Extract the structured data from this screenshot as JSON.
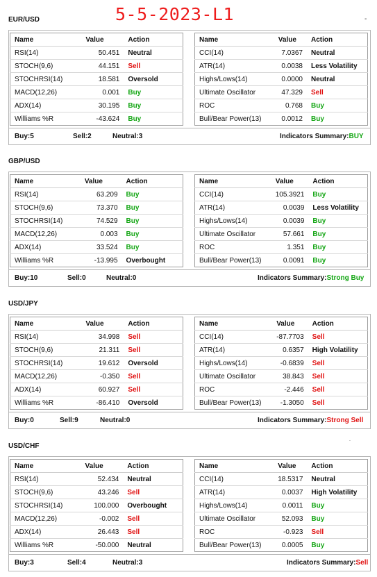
{
  "title": "5-5-2023-L1",
  "columns": {
    "name": "Name",
    "value": "Value",
    "action": "Action"
  },
  "colors": {
    "buy": "#12a512",
    "sell": "#e01010",
    "neutral": "#111111",
    "title": "#ee1c1c"
  },
  "summary_label": "Indicators Summary:",
  "pairs": [
    {
      "pair": "EUR/USD",
      "left": [
        {
          "name": "RSI(14)",
          "value": "50.451",
          "action": "Neutral"
        },
        {
          "name": "STOCH(9,6)",
          "value": "44.151",
          "action": "Sell"
        },
        {
          "name": "STOCHRSI(14)",
          "value": "18.581",
          "action": "Oversold"
        },
        {
          "name": "MACD(12,26)",
          "value": "0.001",
          "action": "Buy"
        },
        {
          "name": "ADX(14)",
          "value": "30.195",
          "action": "Buy"
        },
        {
          "name": "Williams %R",
          "value": "-43.624",
          "action": "Buy"
        }
      ],
      "right": [
        {
          "name": "CCI(14)",
          "value": "7.0367",
          "action": "Neutral"
        },
        {
          "name": "ATR(14)",
          "value": "0.0038",
          "action": "Less Volatility"
        },
        {
          "name": "Highs/Lows(14)",
          "value": "0.0000",
          "action": "Neutral"
        },
        {
          "name": "Ultimate Oscillator",
          "value": "47.329",
          "action": "Sell"
        },
        {
          "name": "ROC",
          "value": "0.768",
          "action": "Buy"
        },
        {
          "name": "Bull/Bear Power(13)",
          "value": "0.0012",
          "action": "Buy"
        }
      ],
      "buy": "Buy:5",
      "sell": "Sell:2",
      "neutral": "Neutral:3",
      "summary": "BUY"
    },
    {
      "pair": "GBP/USD",
      "left": [
        {
          "name": "RSI(14)",
          "value": "63.209",
          "action": "Buy"
        },
        {
          "name": "STOCH(9,6)",
          "value": "73.370",
          "action": "Buy"
        },
        {
          "name": "STOCHRSI(14)",
          "value": "74.529",
          "action": "Buy"
        },
        {
          "name": "MACD(12,26)",
          "value": "0.003",
          "action": "Buy"
        },
        {
          "name": "ADX(14)",
          "value": "33.524",
          "action": "Buy"
        },
        {
          "name": "Williams %R",
          "value": "-13.995",
          "action": "Overbought"
        }
      ],
      "right": [
        {
          "name": "CCI(14)",
          "value": "105.3921",
          "action": "Buy"
        },
        {
          "name": "ATR(14)",
          "value": "0.0039",
          "action": "Less Volatility"
        },
        {
          "name": "Highs/Lows(14)",
          "value": "0.0039",
          "action": "Buy"
        },
        {
          "name": "Ultimate Oscillator",
          "value": "57.661",
          "action": "Buy"
        },
        {
          "name": "ROC",
          "value": "1.351",
          "action": "Buy"
        },
        {
          "name": "Bull/Bear Power(13)",
          "value": "0.0091",
          "action": "Buy"
        }
      ],
      "buy": "Buy:10",
      "sell": "Sell:0",
      "neutral": "Neutral:0",
      "summary": "Strong Buy"
    },
    {
      "pair": "USD/JPY",
      "left": [
        {
          "name": "RSI(14)",
          "value": "34.998",
          "action": "Sell"
        },
        {
          "name": "STOCH(9,6)",
          "value": "21.311",
          "action": "Sell"
        },
        {
          "name": "STOCHRSI(14)",
          "value": "19.612",
          "action": "Oversold"
        },
        {
          "name": "MACD(12,26)",
          "value": "-0.350",
          "action": "Sell"
        },
        {
          "name": "ADX(14)",
          "value": "60.927",
          "action": "Sell"
        },
        {
          "name": "Williams %R",
          "value": "-86.410",
          "action": "Oversold"
        }
      ],
      "right": [
        {
          "name": "CCI(14)",
          "value": "-87.7703",
          "action": "Sell"
        },
        {
          "name": "ATR(14)",
          "value": "0.6357",
          "action": "High Volatility"
        },
        {
          "name": "Highs/Lows(14)",
          "value": "-0.6839",
          "action": "Sell"
        },
        {
          "name": "Ultimate Oscillator",
          "value": "38.843",
          "action": "Sell"
        },
        {
          "name": "ROC",
          "value": "-2.446",
          "action": "Sell"
        },
        {
          "name": "Bull/Bear Power(13)",
          "value": "-1.3050",
          "action": "Sell"
        }
      ],
      "buy": "Buy:0",
      "sell": "Sell:9",
      "neutral": "Neutral:0",
      "summary": "Strong Sell"
    },
    {
      "pair": "USD/CHF",
      "left": [
        {
          "name": "RSI(14)",
          "value": "52.434",
          "action": "Neutral"
        },
        {
          "name": "STOCH(9,6)",
          "value": "43.246",
          "action": "Sell"
        },
        {
          "name": "STOCHRSI(14)",
          "value": "100.000",
          "action": "Overbought"
        },
        {
          "name": "MACD(12,26)",
          "value": "-0.002",
          "action": "Sell"
        },
        {
          "name": "ADX(14)",
          "value": "26.443",
          "action": "Sell"
        },
        {
          "name": "Williams %R",
          "value": "-50.000",
          "action": "Neutral"
        }
      ],
      "right": [
        {
          "name": "CCI(14)",
          "value": "18.5317",
          "action": "Neutral"
        },
        {
          "name": "ATR(14)",
          "value": "0.0037",
          "action": "High Volatility"
        },
        {
          "name": "Highs/Lows(14)",
          "value": "0.0011",
          "action": "Buy"
        },
        {
          "name": "Ultimate Oscillator",
          "value": "52.093",
          "action": "Buy"
        },
        {
          "name": "ROC",
          "value": "-0.923",
          "action": "Sell"
        },
        {
          "name": "Bull/Bear Power(13)",
          "value": "0.0005",
          "action": "Buy"
        }
      ],
      "buy": "Buy:3",
      "sell": "Sell:4",
      "neutral": "Neutral:3",
      "summary": "Sell"
    }
  ]
}
